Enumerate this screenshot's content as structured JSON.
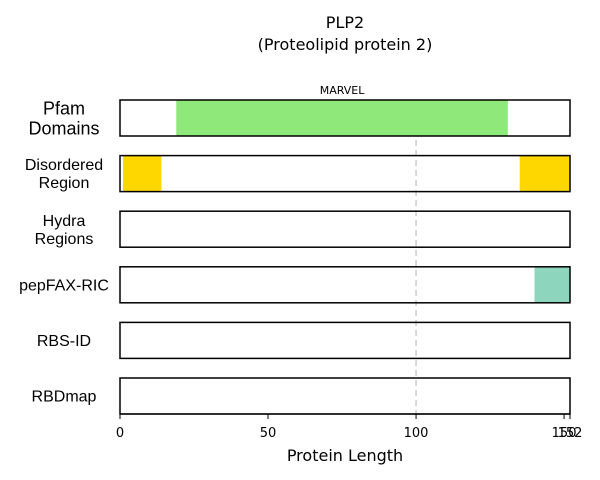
{
  "chart_data": {
    "type": "bar",
    "title": "PLP2",
    "subtitle": "(Proteolipid protein 2)",
    "xlabel": "Protein Length",
    "xlim": [
      0,
      152
    ],
    "xticks": [
      0,
      50,
      100,
      150,
      152
    ],
    "xtick_labels": [
      "0",
      "50",
      "100",
      "150",
      "152"
    ],
    "reference_line_x": 100,
    "tracks": [
      {
        "label_lines": [
          "Pfam",
          "Domains"
        ],
        "segments": [
          {
            "start": 19,
            "end": 131,
            "color": "#8EE87A",
            "label": "MARVEL"
          }
        ]
      },
      {
        "label_lines": [
          "Disordered",
          "Region"
        ],
        "segments": [
          {
            "start": 1,
            "end": 14,
            "color": "#FFD700"
          },
          {
            "start": 135,
            "end": 152,
            "color": "#FFD700"
          }
        ]
      },
      {
        "label_lines": [
          "Hydra",
          "Regions"
        ],
        "segments": []
      },
      {
        "label_lines": [
          "pepFAX-RIC"
        ],
        "segments": [
          {
            "start": 140,
            "end": 152,
            "color": "#8ED5BE"
          }
        ]
      },
      {
        "label_lines": [
          "RBS-ID"
        ],
        "segments": []
      },
      {
        "label_lines": [
          "RBDmap"
        ],
        "segments": []
      }
    ]
  }
}
